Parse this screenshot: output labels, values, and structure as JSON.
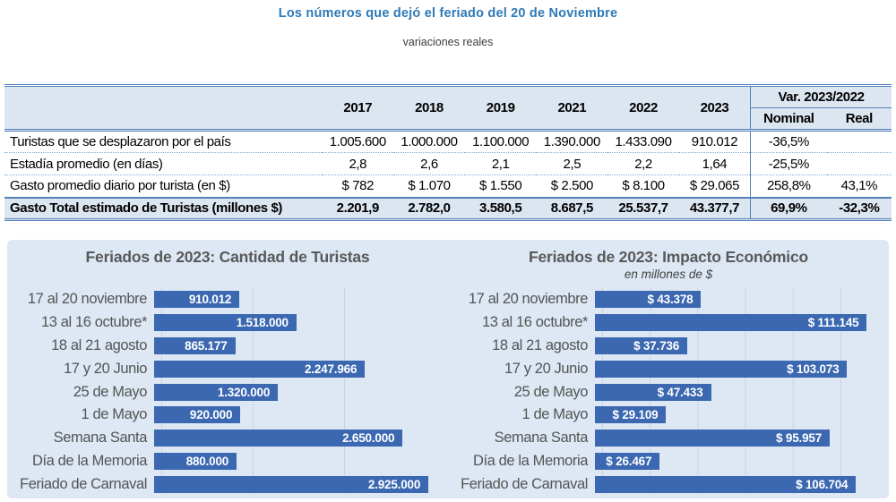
{
  "page": {
    "title": "Los números que dejó el feriado del 20 de Noviembre",
    "subtitle": "variaciones reales"
  },
  "colors": {
    "title_blue": "#2e79b8",
    "table_border_blue": "#5580b8",
    "table_header_bg": "#dce6f1",
    "panel_bg": "#dde8f4",
    "bar_blue": "#3b68b1",
    "chart_text_gray": "#595959"
  },
  "table": {
    "year_headers": [
      "2017",
      "2018",
      "2019",
      "2021",
      "2022",
      "2023"
    ],
    "var_header": "Var. 2023/2022",
    "var_subheaders": [
      "Nominal",
      "Real"
    ],
    "rows": [
      {
        "label": "Turistas que se desplazaron por el país",
        "values": [
          "1.005.600",
          "1.000.000",
          "1.100.000",
          "1.390.000",
          "1.433.090",
          "910.012",
          "-36,5%",
          ""
        ],
        "emphasis": false
      },
      {
        "label": "Estadía promedio (en días)",
        "values": [
          "2,8",
          "2,6",
          "2,1",
          "2,5",
          "2,2",
          "1,64",
          "-25,5%",
          ""
        ],
        "emphasis": false
      },
      {
        "label": "Gasto promedio diario por turista (en $)",
        "values": [
          "$ 782",
          "$ 1.070",
          "$ 1.550",
          "$ 2.500",
          "$ 8.100",
          "$ 29.065",
          "258,8%",
          "43,1%"
        ],
        "emphasis": false
      },
      {
        "label": "Gasto Total estimado de Turistas (millones $)",
        "values": [
          "2.201,9",
          "2.782,0",
          "3.580,5",
          "8.687,5",
          "25.537,7",
          "43.377,7",
          "69,9%",
          "-32,3%"
        ],
        "emphasis": true
      }
    ]
  },
  "chart_data": [
    {
      "type": "bar",
      "orientation": "horizontal",
      "title": "Feriados de 2023: Cantidad de Turistas",
      "categories": [
        "17 al 20 noviembre",
        "13 al 16 octubre*",
        "18 al 21 agosto",
        "17 y 20 Junio",
        "25 de Mayo",
        "1 de Mayo",
        "Semana Santa",
        "Día de la Memoria",
        "Feriado de Carnaval"
      ],
      "values": [
        910012,
        1518000,
        865177,
        2247966,
        1320000,
        920000,
        2650000,
        880000,
        2925000
      ],
      "value_labels": [
        "910.012",
        "1.518.000",
        "865.177",
        "2.247.966",
        "1.320.000",
        "920.000",
        "2.650.000",
        "880.000",
        "2.925.000"
      ],
      "xlim": [
        0,
        3000000
      ],
      "gridline_interval": 1000000,
      "grid": true,
      "legend": "none",
      "bar_color": "#3b68b1"
    },
    {
      "type": "bar",
      "orientation": "horizontal",
      "title": "Feriados de 2023: Impacto Económico",
      "subtitle": "en millones de $",
      "categories": [
        "17 al 20 noviembre",
        "13 al 16 octubre*",
        "18 al 21 agosto",
        "17 y 20 Junio",
        "25 de Mayo",
        "1 de Mayo",
        "Semana Santa",
        "Día de la Memoria",
        "Feriado de Carnaval"
      ],
      "values": [
        43378,
        111145,
        37736,
        103073,
        47433,
        29109,
        95957,
        26467,
        106704
      ],
      "value_labels": [
        "$ 43.378",
        "$ 111.145",
        "$ 37.736",
        "$ 103.073",
        "$ 47.433",
        "$ 29.109",
        "$ 95.957",
        "$ 26.467",
        "$ 106.704"
      ],
      "xlim": [
        0,
        115000
      ],
      "gridline_interval": 20000,
      "grid": true,
      "legend": "none",
      "bar_color": "#3b68b1"
    }
  ]
}
